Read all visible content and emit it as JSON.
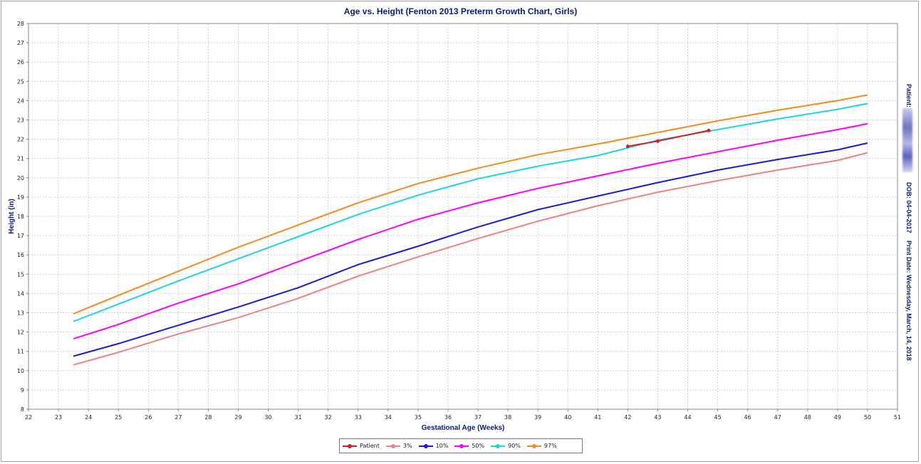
{
  "chart_data": {
    "type": "line",
    "title": "Age vs. Height (Fenton 2013 Preterm Growth Chart, Girls)",
    "xlabel": "Gestational Age (Weeks)",
    "ylabel": "Height (in)",
    "xlim": [
      22,
      51
    ],
    "ylim": [
      8,
      28
    ],
    "xticks": [
      "22",
      "23",
      "24",
      "25",
      "26",
      "27",
      "28",
      "29",
      "30",
      "31",
      "32",
      "33",
      "34",
      "35",
      "36",
      "37",
      "38",
      "39",
      "40",
      "41",
      "42",
      "43",
      "44",
      "45",
      "46",
      "47",
      "48",
      "49",
      "50",
      "51"
    ],
    "yticks": [
      "8",
      "9",
      "10",
      "11",
      "12",
      "13",
      "14",
      "15",
      "16",
      "17",
      "18",
      "19",
      "20",
      "21",
      "22",
      "23",
      "24",
      "25",
      "26",
      "27",
      "28"
    ],
    "grid": true,
    "legend_position": "bottom",
    "series": [
      {
        "name": "Patient",
        "color": "#d62020",
        "markers": true,
        "points": [
          [
            42.0,
            21.63
          ],
          [
            43.0,
            21.9
          ],
          [
            44.7,
            22.45
          ]
        ]
      },
      {
        "name": "3%",
        "color": "#f08080",
        "points": [
          [
            23.5,
            10.3
          ],
          [
            25,
            10.95
          ],
          [
            27,
            11.9
          ],
          [
            29,
            12.75
          ],
          [
            31,
            13.75
          ],
          [
            33,
            14.9
          ],
          [
            35,
            15.9
          ],
          [
            37,
            16.85
          ],
          [
            39,
            17.75
          ],
          [
            41,
            18.55
          ],
          [
            43,
            19.25
          ],
          [
            45,
            19.85
          ],
          [
            47,
            20.4
          ],
          [
            49,
            20.9
          ],
          [
            50,
            21.3
          ]
        ]
      },
      {
        "name": "10%",
        "color": "#1a1adb",
        "points": [
          [
            23.5,
            10.75
          ],
          [
            25,
            11.4
          ],
          [
            27,
            12.35
          ],
          [
            29,
            13.3
          ],
          [
            31,
            14.3
          ],
          [
            33,
            15.5
          ],
          [
            35,
            16.45
          ],
          [
            37,
            17.45
          ],
          [
            39,
            18.35
          ],
          [
            41,
            19.05
          ],
          [
            43,
            19.75
          ],
          [
            45,
            20.4
          ],
          [
            47,
            20.95
          ],
          [
            49,
            21.45
          ],
          [
            50,
            21.8
          ]
        ]
      },
      {
        "name": "50%",
        "color": "#ff00ff",
        "points": [
          [
            23.5,
            11.65
          ],
          [
            25,
            12.4
          ],
          [
            27,
            13.5
          ],
          [
            29,
            14.5
          ],
          [
            31,
            15.65
          ],
          [
            33,
            16.8
          ],
          [
            35,
            17.85
          ],
          [
            37,
            18.7
          ],
          [
            39,
            19.45
          ],
          [
            41,
            20.1
          ],
          [
            43,
            20.75
          ],
          [
            45,
            21.35
          ],
          [
            47,
            21.95
          ],
          [
            49,
            22.5
          ],
          [
            50,
            22.8
          ]
        ]
      },
      {
        "name": "90%",
        "color": "#1ad4e8",
        "points": [
          [
            23.5,
            12.55
          ],
          [
            25,
            13.45
          ],
          [
            27,
            14.65
          ],
          [
            29,
            15.8
          ],
          [
            31,
            16.95
          ],
          [
            33,
            18.1
          ],
          [
            35,
            19.1
          ],
          [
            37,
            19.95
          ],
          [
            39,
            20.6
          ],
          [
            41,
            21.15
          ],
          [
            43,
            21.95
          ],
          [
            45,
            22.5
          ],
          [
            47,
            23.05
          ],
          [
            49,
            23.55
          ],
          [
            50,
            23.85
          ]
        ]
      },
      {
        "name": "97%",
        "color": "#f58a1f",
        "points": [
          [
            23.5,
            12.95
          ],
          [
            25,
            13.9
          ],
          [
            27,
            15.15
          ],
          [
            29,
            16.4
          ],
          [
            31,
            17.55
          ],
          [
            33,
            18.7
          ],
          [
            35,
            19.7
          ],
          [
            37,
            20.5
          ],
          [
            39,
            21.2
          ],
          [
            41,
            21.75
          ],
          [
            43,
            22.35
          ],
          [
            45,
            22.95
          ],
          [
            47,
            23.5
          ],
          [
            49,
            24.0
          ],
          [
            50,
            24.3
          ]
        ]
      }
    ]
  },
  "side_labels": {
    "patient": "Patient:",
    "dob": "DOB: 04-04-2017",
    "print_date": "Print Date: Wednesday, March, 14, 2018"
  }
}
